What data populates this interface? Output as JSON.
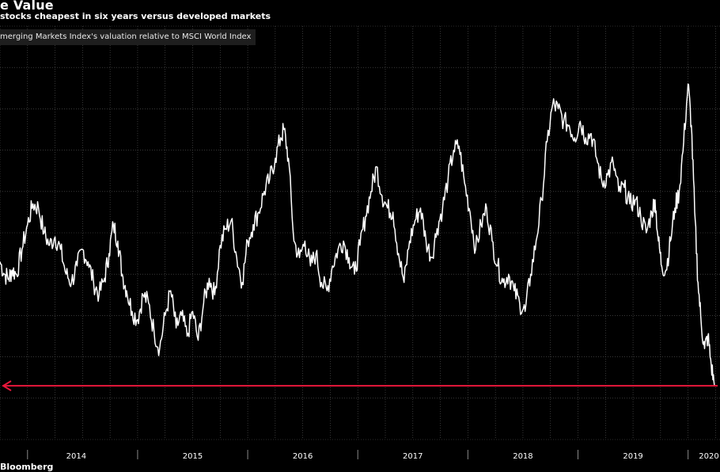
{
  "header": {
    "title": "e Value",
    "subtitle": " stocks cheapest in six years versus developed markets"
  },
  "legend": {
    "label": "merging Markets Index's valuation relative to MSCI World Index"
  },
  "footer": {
    "source": "Bloomberg"
  },
  "colors": {
    "background": "#000000",
    "grid": "#5a5a5a",
    "line": "#ffffff",
    "arrow": "#e8173b",
    "legend_bg": "#1e1e1e"
  },
  "chart_data": {
    "type": "line",
    "title": "e Value",
    "subtitle": " stocks cheapest in six years versus developed markets",
    "ylabel": "",
    "xlabel": "",
    "grid": true,
    "legend_placement": "top-left",
    "x_range": [
      2013.75,
      2020.29
    ],
    "y_range": [
      0,
      100
    ],
    "y_tick_labels_visible": false,
    "x_tick_labels": [
      "2014",
      "2015",
      "2016",
      "2017",
      "2018",
      "2019",
      "2020"
    ],
    "series": [
      {
        "name": "merging Markets Index's valuation relative to MSCI World Index",
        "x": [
          2013.75,
          2013.79,
          2013.83,
          2013.86,
          2013.9,
          2013.95,
          2014.0,
          2014.05,
          2014.1,
          2014.15,
          2014.2,
          2014.25,
          2014.3,
          2014.35,
          2014.4,
          2014.45,
          2014.5,
          2014.55,
          2014.6,
          2014.65,
          2014.7,
          2014.74,
          2014.78,
          2014.82,
          2014.86,
          2014.9,
          2014.95,
          2015.0,
          2015.05,
          2015.1,
          2015.15,
          2015.2,
          2015.25,
          2015.3,
          2015.35,
          2015.4,
          2015.45,
          2015.5,
          2015.55,
          2015.6,
          2015.65,
          2015.7,
          2015.75,
          2015.8,
          2015.85,
          2015.9,
          2015.95,
          2016.0,
          2016.05,
          2016.1,
          2016.15,
          2016.2,
          2016.25,
          2016.3,
          2016.33,
          2016.37,
          2016.42,
          2016.47,
          2016.52,
          2016.57,
          2016.62,
          2016.67,
          2016.72,
          2016.77,
          2016.82,
          2016.87,
          2016.92,
          2016.97,
          2017.02,
          2017.07,
          2017.12,
          2017.17,
          2017.22,
          2017.27,
          2017.32,
          2017.37,
          2017.42,
          2017.47,
          2017.52,
          2017.57,
          2017.62,
          2017.67,
          2017.72,
          2017.77,
          2017.82,
          2017.87,
          2017.92,
          2017.97,
          2018.02,
          2018.07,
          2018.12,
          2018.17,
          2018.22,
          2018.27,
          2018.32,
          2018.37,
          2018.42,
          2018.47,
          2018.52,
          2018.57,
          2018.62,
          2018.67,
          2018.72,
          2018.77,
          2018.82,
          2018.87,
          2018.92,
          2018.97,
          2019.02,
          2019.07,
          2019.12,
          2019.17,
          2019.22,
          2019.27,
          2019.32,
          2019.37,
          2019.42,
          2019.47,
          2019.52,
          2019.57,
          2019.62,
          2019.67,
          2019.7,
          2019.73,
          2019.76,
          2019.8,
          2019.84,
          2019.88,
          2019.92,
          2019.96,
          2020.0,
          2020.03,
          2020.06,
          2020.09,
          2020.12,
          2020.15,
          2020.18,
          2020.21,
          2020.24
        ],
        "values": [
          43,
          40,
          39,
          41,
          40,
          46,
          52,
          57,
          56,
          50,
          47,
          49,
          46,
          40,
          38,
          42,
          46,
          43,
          38,
          35,
          39,
          45,
          52,
          48,
          40,
          36,
          31,
          29,
          35,
          33,
          26,
          22,
          30,
          36,
          27,
          30,
          25,
          31,
          24,
          33,
          39,
          35,
          47,
          51,
          53,
          44,
          38,
          48,
          52,
          55,
          60,
          63,
          68,
          73,
          75,
          68,
          48,
          44,
          48,
          42,
          45,
          38,
          36,
          42,
          46,
          48,
          44,
          40,
          47,
          54,
          60,
          66,
          59,
          56,
          55,
          45,
          38,
          48,
          53,
          56,
          48,
          44,
          51,
          56,
          63,
          70,
          71,
          62,
          55,
          46,
          52,
          56,
          48,
          42,
          38,
          40,
          36,
          33,
          31,
          40,
          48,
          58,
          72,
          81,
          80,
          77,
          76,
          73,
          77,
          73,
          74,
          68,
          62,
          64,
          67,
          60,
          61,
          57,
          58,
          54,
          50,
          55,
          58,
          48,
          42,
          41,
          48,
          56,
          60,
          72,
          86,
          76,
          55,
          38,
          28,
          22,
          25,
          18,
          13
        ]
      }
    ],
    "annotations": [
      {
        "type": "horizontal-arrow",
        "y": 13,
        "direction": "left",
        "color": "#e8173b"
      }
    ]
  }
}
